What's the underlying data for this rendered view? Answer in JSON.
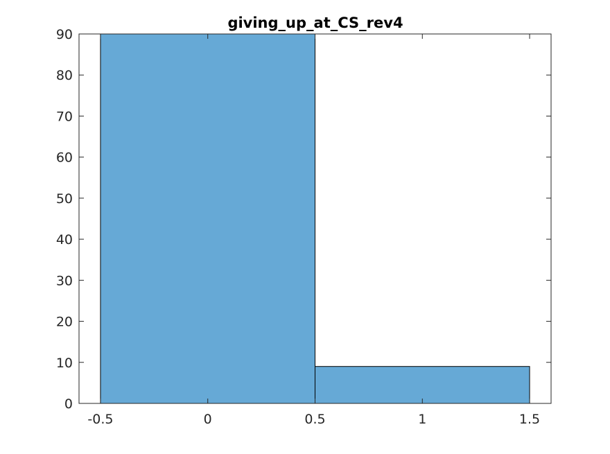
{
  "chart_data": {
    "type": "bar",
    "title": "giving_up_at_CS_rev4",
    "xlabel": "",
    "ylabel": "",
    "xlim": [
      -0.6,
      1.6
    ],
    "ylim": [
      0,
      90
    ],
    "xticks": [
      -0.5,
      0,
      0.5,
      1,
      1.5
    ],
    "xtick_labels": [
      "-0.5",
      "0",
      "0.5",
      "1",
      "1.5"
    ],
    "yticks": [
      0,
      10,
      20,
      30,
      40,
      50,
      60,
      70,
      80,
      90
    ],
    "ytick_labels": [
      "0",
      "10",
      "20",
      "30",
      "40",
      "50",
      "60",
      "70",
      "80",
      "90"
    ],
    "bins": [
      {
        "x0": -0.5,
        "x1": 0.5,
        "value": 90
      },
      {
        "x0": 0.5,
        "x1": 1.5,
        "value": 9
      }
    ],
    "grid": false,
    "colors": {
      "bar_fill": "#66a9d6",
      "bar_edge": "#000000",
      "axis": "#262626"
    }
  }
}
